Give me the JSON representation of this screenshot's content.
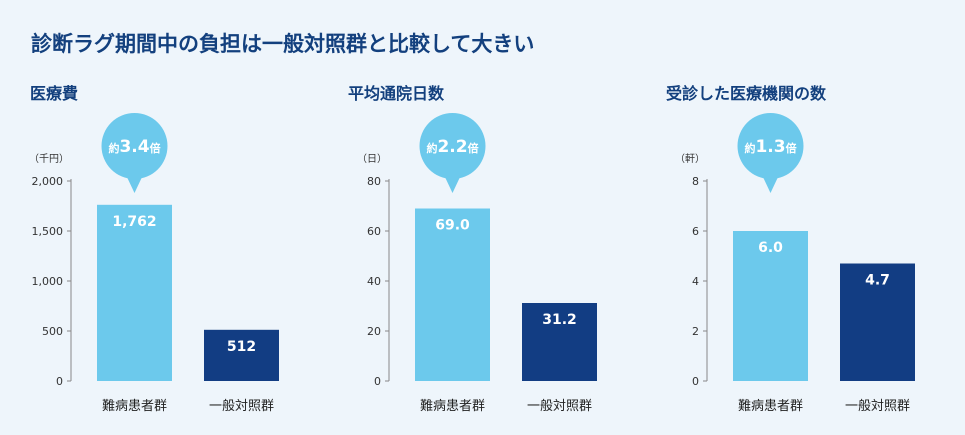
{
  "title": "診断ラグ期間中の負担は一般対照群と比較して大きい",
  "colors": {
    "title": "#13407e",
    "bar_patient": "#6cc9ec",
    "bar_control": "#123d83",
    "bubble": "#6cc9ec",
    "axis": "#888888"
  },
  "chart_data": [
    {
      "type": "bar",
      "title": "医療費",
      "unit": "（千円）",
      "categories": [
        "難病患者群",
        "一般対照群"
      ],
      "values": [
        1762,
        512
      ],
      "value_labels": [
        "1,762",
        "512"
      ],
      "ylim": [
        0,
        2000
      ],
      "yticks": [
        0,
        500,
        1000,
        1500,
        2000
      ],
      "ytick_labels": [
        "0",
        "500",
        "1,000",
        "1,500",
        "2,000"
      ],
      "callout": {
        "prefix": "約",
        "value": "3.4",
        "suffix": "倍"
      }
    },
    {
      "type": "bar",
      "title": "平均通院日数",
      "unit": "（日）",
      "categories": [
        "難病患者群",
        "一般対照群"
      ],
      "values": [
        69.0,
        31.2
      ],
      "value_labels": [
        "69.0",
        "31.2"
      ],
      "ylim": [
        0,
        80
      ],
      "yticks": [
        0,
        20,
        40,
        60,
        80
      ],
      "ytick_labels": [
        "0",
        "20",
        "40",
        "60",
        "80"
      ],
      "callout": {
        "prefix": "約",
        "value": "2.2",
        "suffix": "倍"
      }
    },
    {
      "type": "bar",
      "title": "受診した医療機関の数",
      "unit": "（軒）",
      "categories": [
        "難病患者群",
        "一般対照群"
      ],
      "values": [
        6.0,
        4.7
      ],
      "value_labels": [
        "6.0",
        "4.7"
      ],
      "ylim": [
        0,
        8
      ],
      "yticks": [
        0,
        2,
        4,
        6,
        8
      ],
      "ytick_labels": [
        "0",
        "2",
        "4",
        "6",
        "8"
      ],
      "callout": {
        "prefix": "約",
        "value": "1.3",
        "suffix": "倍"
      }
    }
  ]
}
